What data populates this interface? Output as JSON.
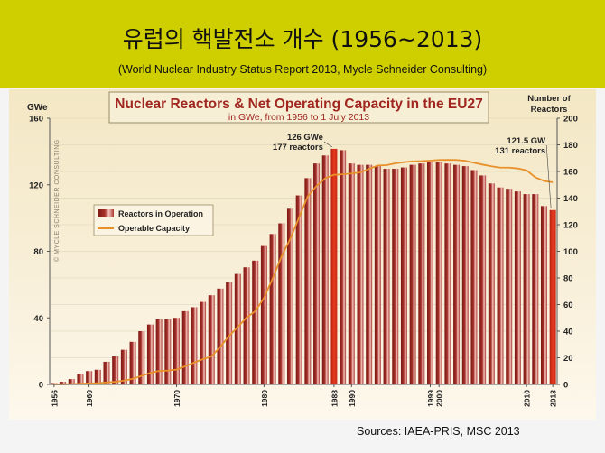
{
  "slide": {
    "title": "유럽의 핵발전소 개수 (1956~2013)",
    "subtitle": "(World Nuclear Industry Status Report 2013, Mycle Schneider Consulting)",
    "source": "Sources: IAEA-PRIS, MSC 2013"
  },
  "chart_data": {
    "type": "bar",
    "title": "Nuclear Reactors & Net Operating Capacity in the EU27",
    "subtitle": "in GWe, from 1956 to 1 July 2013",
    "watermark": "© MYCLE SCHNEIDER CONSULTING",
    "left_axis_label": "GWe",
    "right_axis_label": "Number of Reactors",
    "left_ylim": [
      0,
      160
    ],
    "left_ticks": [
      0,
      40,
      80,
      120,
      160
    ],
    "right_ylim": [
      0,
      200
    ],
    "right_ticks": [
      0,
      20,
      40,
      60,
      80,
      100,
      120,
      140,
      160,
      180,
      200
    ],
    "x_tick_labels": [
      "1956",
      "1960",
      "1970",
      "1980",
      "1988",
      "1990",
      "1999",
      "2000",
      "2010",
      "2013"
    ],
    "legend": [
      "Reactors in Operation",
      "Operable Capacity"
    ],
    "legend_position": "left",
    "years": [
      1956,
      1957,
      1958,
      1959,
      1960,
      1961,
      1962,
      1963,
      1964,
      1965,
      1966,
      1967,
      1968,
      1969,
      1970,
      1971,
      1972,
      1973,
      1974,
      1975,
      1976,
      1977,
      1978,
      1979,
      1980,
      1981,
      1982,
      1983,
      1984,
      1985,
      1986,
      1987,
      1988,
      1989,
      1990,
      1991,
      1992,
      1993,
      1994,
      1995,
      1996,
      1997,
      1998,
      1999,
      2000,
      2001,
      2002,
      2003,
      2004,
      2005,
      2006,
      2007,
      2008,
      2009,
      2010,
      2011,
      2012,
      2013
    ],
    "series": [
      {
        "name": "Reactors in Operation",
        "axis": "right",
        "color": "#a8322c",
        "values": [
          1,
          2,
          4,
          8,
          10,
          11,
          17,
          21,
          26,
          32,
          40,
          45,
          49,
          49,
          50,
          55,
          58,
          62,
          67,
          72,
          77,
          83,
          88,
          93,
          104,
          113,
          121,
          132,
          142,
          155,
          166,
          172,
          177,
          176,
          166,
          165,
          165,
          164,
          162,
          162,
          163,
          165,
          166,
          167,
          167,
          166,
          165,
          164,
          161,
          157,
          151,
          148,
          147,
          145,
          143,
          143,
          134,
          131
        ]
      },
      {
        "name": "Operable Capacity",
        "axis": "left",
        "color": "#e8902a",
        "values": [
          0.05,
          0.1,
          0.2,
          0.4,
          0.6,
          0.8,
          1.2,
          1.6,
          2.3,
          3.4,
          5.1,
          6.9,
          8.1,
          8.3,
          8.9,
          10.9,
          13.1,
          15.1,
          16.8,
          22.6,
          29.1,
          34.5,
          40.2,
          44.0,
          52.0,
          63.9,
          76.9,
          87.5,
          100.3,
          113.1,
          119.2,
          123.9,
          126.0,
          126.3,
          126.8,
          127.4,
          129.6,
          131.6,
          131.8,
          132.9,
          133.6,
          134.1,
          134.2,
          134.5,
          134.9,
          135.0,
          134.9,
          134.4,
          133.2,
          132.1,
          131.1,
          130.3,
          130.3,
          129.8,
          128.7,
          124.5,
          122.3,
          121.5
        ]
      }
    ],
    "highlighted_years": [
      1988,
      2013
    ],
    "highlight_color": "#e63a1e",
    "annotations": [
      {
        "year": 1988,
        "lines": [
          "126 GWe",
          "177 reactors"
        ]
      },
      {
        "year": 2013,
        "lines": [
          "121.5 GW",
          "131 reactors"
        ]
      }
    ]
  }
}
